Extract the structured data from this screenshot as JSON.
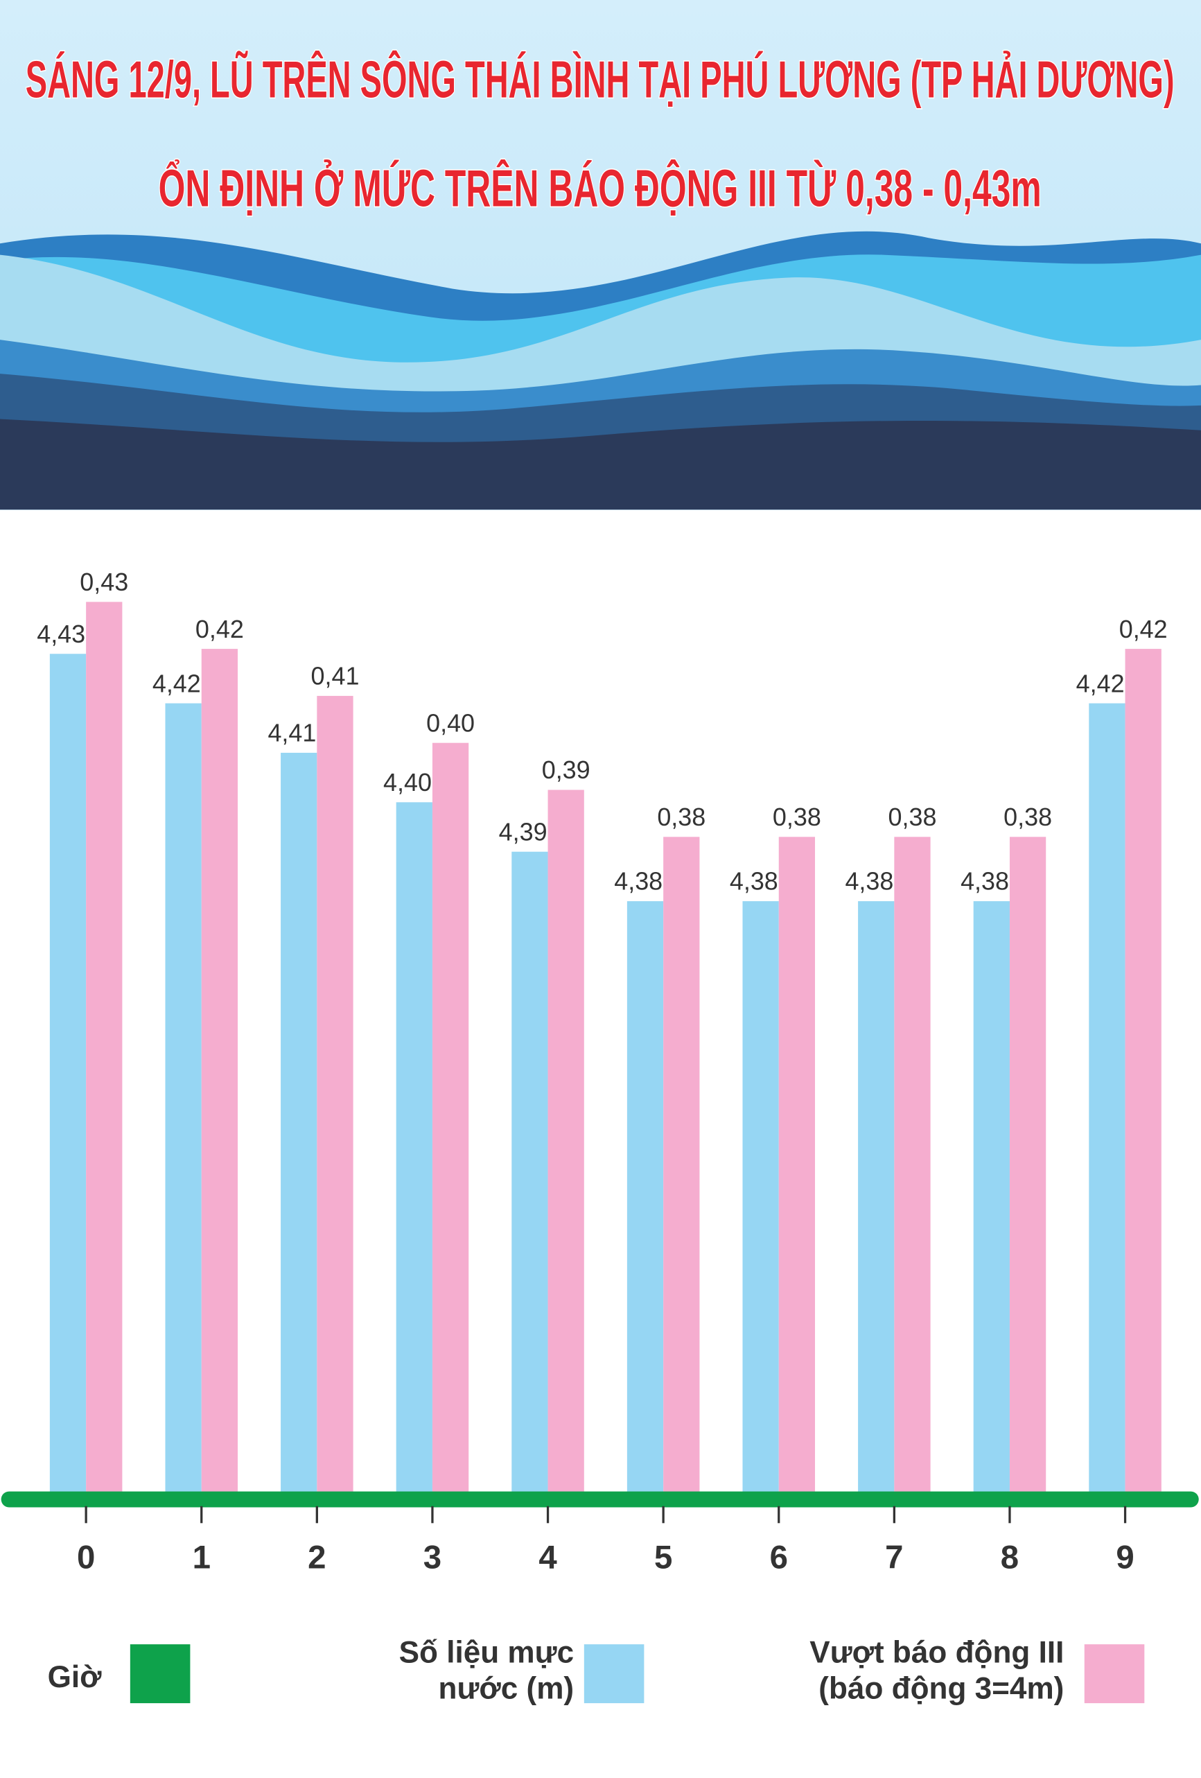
{
  "chart_data": {
    "type": "bar",
    "title": [
      "SÁNG 12/9, LŨ TRÊN SÔNG THÁI BÌNH TẠI PHÚ LƯƠNG (TP HẢI DƯƠNG)",
      "ỔN ĐỊNH Ở MỨC TRÊN BÁO ĐỘNG III TỪ 0,38 - 0,43m"
    ],
    "x_label": "Giờ",
    "x_axis_color": "#0ea24b",
    "categories": [
      "0",
      "1",
      "2",
      "3",
      "4",
      "5",
      "6",
      "7",
      "8",
      "9"
    ],
    "series": [
      {
        "name": "Số liệu mực nước (m)",
        "color": "#96d6f3",
        "values": [
          4.43,
          4.42,
          4.41,
          4.4,
          4.39,
          4.38,
          4.38,
          4.38,
          4.38,
          4.42
        ],
        "value_labels": [
          "4,43",
          "4,42",
          "4,41",
          "4,40",
          "4,39",
          "4,38",
          "4,38",
          "4,38",
          "4,38",
          "4,42"
        ]
      },
      {
        "name": "Vượt báo động III (báo động 3=4m)",
        "color": "#f5adcf",
        "axis": "y2",
        "values": [
          0.43,
          0.42,
          0.41,
          0.4,
          0.39,
          0.38,
          0.38,
          0.38,
          0.38,
          0.42
        ],
        "value_labels": [
          "0,43",
          "0,42",
          "0,41",
          "0,40",
          "0,39",
          "0,38",
          "0,38",
          "0,38",
          "0,38",
          "0,42"
        ]
      }
    ],
    "ylim": [
      4.26,
      4.45
    ],
    "y2lim": [
      0.24,
      0.44
    ]
  }
}
